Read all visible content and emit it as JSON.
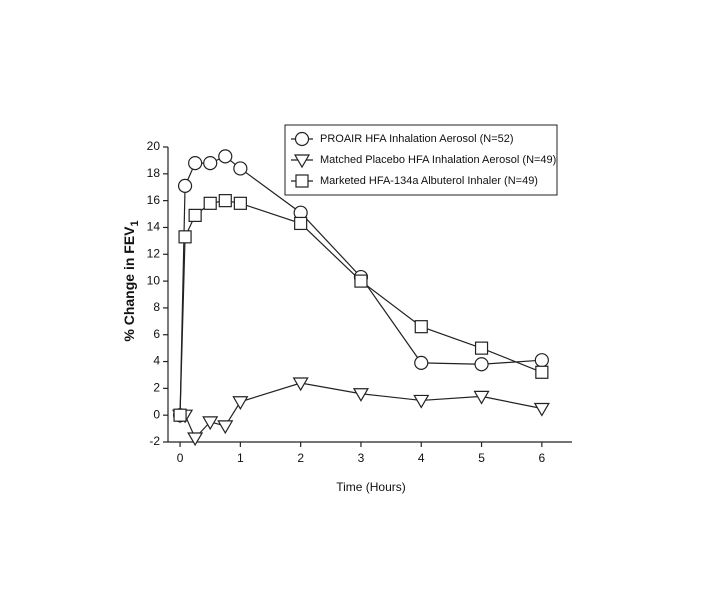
{
  "chart_data": {
    "type": "line",
    "xlabel": "Time (Hours)",
    "ylabel": {
      "text": "% Change in FEV",
      "subscript": "1"
    },
    "x": [
      0,
      0.083,
      0.25,
      0.5,
      0.75,
      1,
      2,
      3,
      4,
      5,
      6
    ],
    "series": [
      {
        "name": "PROAIR HFA Inhalation Aerosol (N=52)",
        "color": "#222222",
        "marker": "circle",
        "values": [
          0,
          17.1,
          18.8,
          18.8,
          19.3,
          18.4,
          15.1,
          10.3,
          3.9,
          3.8,
          4.1
        ]
      },
      {
        "name": "Matched Placebo HFA Inhalation Aerosol (N=49)",
        "color": "#222222",
        "marker": "triangle-down",
        "values": [
          0,
          0,
          -1.7,
          -0.5,
          -0.8,
          1.0,
          2.4,
          1.6,
          1.1,
          1.4,
          0.5
        ]
      },
      {
        "name": "Marketed HFA-134a Albuterol Inhaler (N=49)",
        "color": "#222222",
        "marker": "square",
        "values": [
          0,
          13.3,
          14.9,
          15.8,
          16.0,
          15.8,
          14.3,
          10.0,
          6.6,
          5.0,
          3.2
        ]
      }
    ],
    "xlim": [
      -0.2,
      6.5
    ],
    "ylim": [
      -2,
      20
    ],
    "xticks": [
      0,
      1,
      2,
      3,
      4,
      5,
      6
    ],
    "yticks": [
      -2,
      0,
      2,
      4,
      6,
      8,
      10,
      12,
      14,
      16,
      18,
      20
    ],
    "legend": "upper-right"
  }
}
